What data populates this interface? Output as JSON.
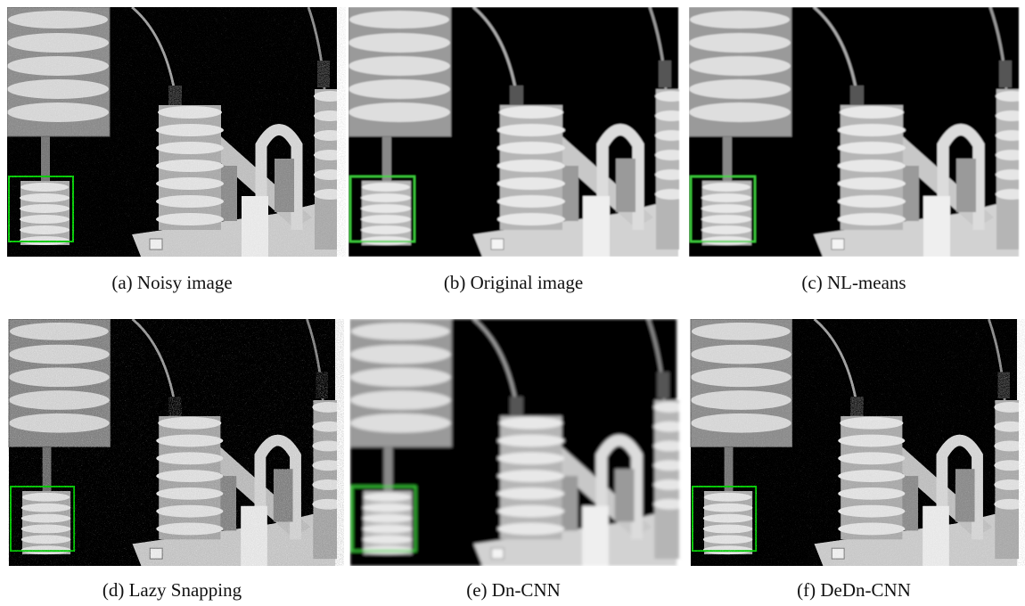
{
  "figure": {
    "panels": [
      {
        "caption": "(a) Noisy image"
      },
      {
        "caption": "(b) Original image"
      },
      {
        "caption": "(c) NL-means"
      },
      {
        "caption": "(d) Lazy Snapping"
      },
      {
        "caption": "(e) Dn-CNN"
      },
      {
        "caption": "(f) DeDn-CNN"
      }
    ]
  }
}
